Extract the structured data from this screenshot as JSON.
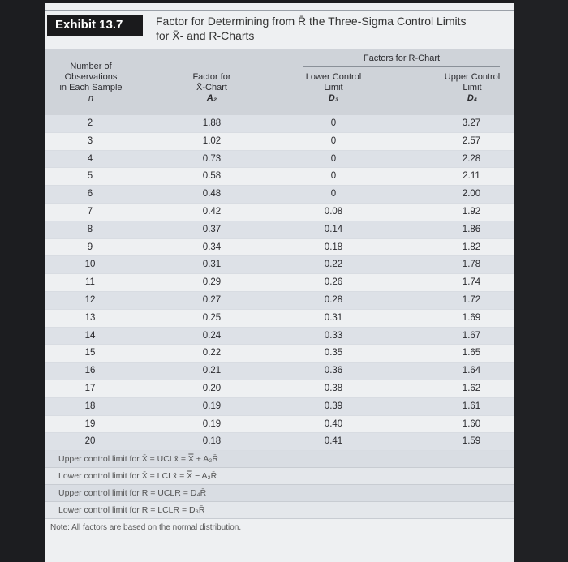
{
  "exhibit_label": "Exhibit 13.7",
  "title_line1": "Factor for Determining from R̄ the Three-Sigma Control Limits",
  "title_line2": "for X̄- and R-Charts",
  "headers": {
    "n": [
      "Number of",
      "Observations",
      "in Each Sample",
      "n"
    ],
    "a2": [
      "Factor for",
      "X̄-Chart",
      "A₂"
    ],
    "group": "Factors for R-Chart",
    "d3": [
      "Lower Control",
      "Limit",
      "D₃"
    ],
    "d4": [
      "Upper Control",
      "Limit",
      "D₄"
    ]
  },
  "rows": [
    [
      "2",
      "1.88",
      "0",
      "3.27"
    ],
    [
      "3",
      "1.02",
      "0",
      "2.57"
    ],
    [
      "4",
      "0.73",
      "0",
      "2.28"
    ],
    [
      "5",
      "0.58",
      "0",
      "2.11"
    ],
    [
      "6",
      "0.48",
      "0",
      "2.00"
    ],
    [
      "7",
      "0.42",
      "0.08",
      "1.92"
    ],
    [
      "8",
      "0.37",
      "0.14",
      "1.86"
    ],
    [
      "9",
      "0.34",
      "0.18",
      "1.82"
    ],
    [
      "10",
      "0.31",
      "0.22",
      "1.78"
    ],
    [
      "11",
      "0.29",
      "0.26",
      "1.74"
    ],
    [
      "12",
      "0.27",
      "0.28",
      "1.72"
    ],
    [
      "13",
      "0.25",
      "0.31",
      "1.69"
    ],
    [
      "14",
      "0.24",
      "0.33",
      "1.67"
    ],
    [
      "15",
      "0.22",
      "0.35",
      "1.65"
    ],
    [
      "16",
      "0.21",
      "0.36",
      "1.64"
    ],
    [
      "17",
      "0.20",
      "0.38",
      "1.62"
    ],
    [
      "18",
      "0.19",
      "0.39",
      "1.61"
    ],
    [
      "19",
      "0.19",
      "0.40",
      "1.60"
    ],
    [
      "20",
      "0.18",
      "0.41",
      "1.59"
    ]
  ],
  "formulas": [
    "Upper control limit for X̄ = UCLx̄ = X̿ + A₂R̄",
    "Lower control limit for X̄ = LCLx̄ = X̿ − A₂R̄",
    "Upper control limit for R = UCLR = D₄R̄",
    "Lower control limit for R = LCLR = D₃R̄"
  ],
  "note": "Note: All factors are based on the normal distribution."
}
